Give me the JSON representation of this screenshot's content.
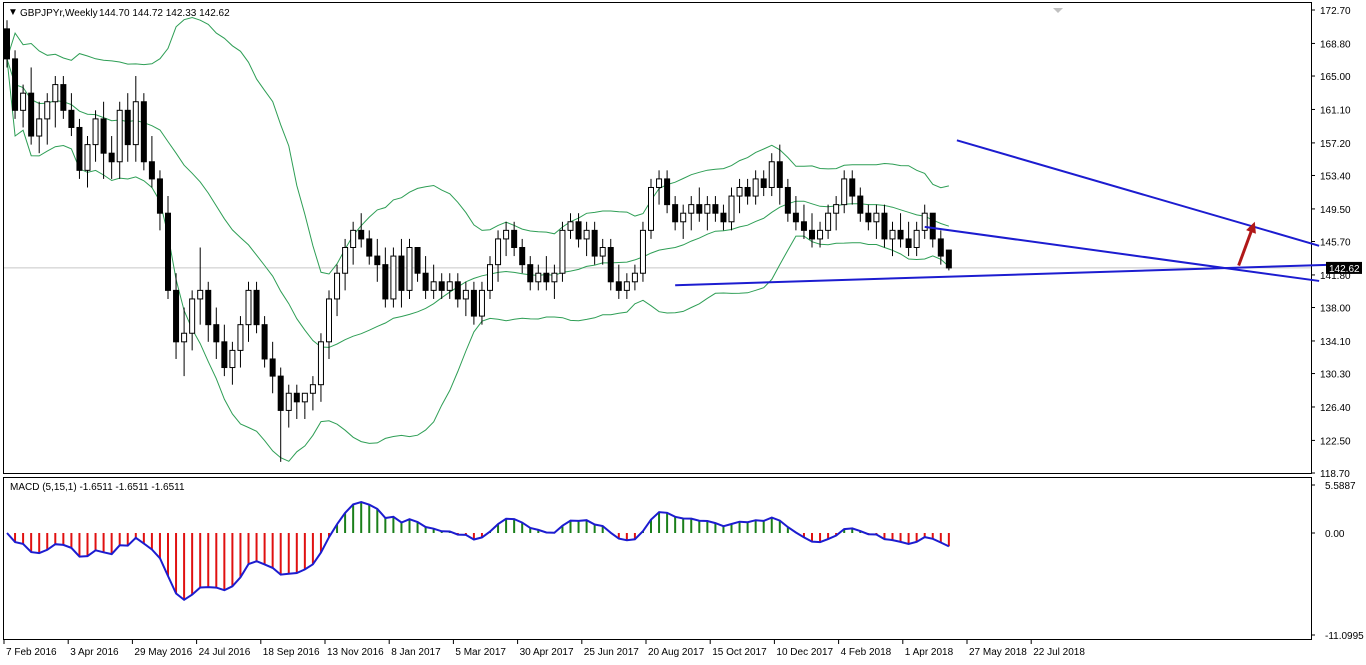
{
  "window": {
    "symbol_title": "GBPJPYr,Weekly",
    "ohlc_readout": "144.70 144.72 142.33 142.62",
    "collapse_marker": "▼"
  },
  "macd_panel": {
    "label": "MACD (5,15,1) -1.6511 -1.6511 -1.6511",
    "axis_ticks": [
      "5.5887",
      "0.00",
      "-11.0995"
    ],
    "colors": {
      "positive": "#1a7f1a",
      "negative": "#e01010",
      "signal": "#1c1cd0"
    }
  },
  "price_axis": {
    "ticks": [
      "172.70",
      "168.80",
      "165.00",
      "161.10",
      "157.20",
      "153.40",
      "149.50",
      "145.70",
      "141.80",
      "138.00",
      "134.10",
      "130.30",
      "126.40",
      "122.50",
      "118.70"
    ],
    "current_price_label": "142.62"
  },
  "time_axis": {
    "labels": [
      "7 Feb 2016",
      "3 Apr 2016",
      "29 May 2016",
      "24 Jul 2016",
      "18 Sep 2016",
      "13 Nov 2016",
      "8 Jan 2017",
      "5 Mar 2017",
      "30 Apr 2017",
      "25 Jun 2017",
      "20 Aug 2017",
      "15 Oct 2017",
      "10 Dec 2017",
      "4 Feb 2018",
      "1 Apr 2018",
      "27 May 2018",
      "22 Jul 2018"
    ]
  },
  "colors": {
    "bull_candle": "#ffffff",
    "bear_candle": "#000000",
    "bollinger": "#2e9e55",
    "trendline": "#1c1cd0",
    "arrow": "#b01818",
    "grid_line": "#c8c8c8"
  },
  "chart_data": {
    "type": "candlestick",
    "symbol": "GBPJPYr",
    "timeframe": "Weekly",
    "ylim": [
      118.7,
      172.7
    ],
    "last_close": 142.62,
    "candles": [
      [
        170.5,
        171.5,
        166,
        167
      ],
      [
        167,
        168,
        160,
        161
      ],
      [
        161,
        164,
        159,
        163
      ],
      [
        163,
        166,
        157,
        158
      ],
      [
        158,
        162,
        156,
        160
      ],
      [
        160,
        163,
        157,
        162
      ],
      [
        162,
        165,
        159,
        164
      ],
      [
        164,
        165,
        160,
        161
      ],
      [
        161,
        163,
        158,
        159
      ],
      [
        159,
        160,
        153,
        154
      ],
      [
        154,
        158,
        152,
        157
      ],
      [
        157,
        161,
        155,
        160
      ],
      [
        160,
        162,
        153,
        156
      ],
      [
        156,
        158,
        153,
        155
      ],
      [
        155,
        162,
        153,
        161
      ],
      [
        161,
        163,
        155,
        157
      ],
      [
        157,
        165,
        155,
        162
      ],
      [
        162,
        163,
        154,
        155
      ],
      [
        155,
        158,
        152,
        153
      ],
      [
        153,
        154,
        147,
        149
      ],
      [
        149,
        151,
        139,
        140
      ],
      [
        140,
        142,
        132,
        134
      ],
      [
        134,
        138,
        130,
        135
      ],
      [
        135,
        140,
        133,
        139
      ],
      [
        139,
        145,
        136,
        140
      ],
      [
        140,
        141,
        134,
        136
      ],
      [
        136,
        138,
        132,
        134
      ],
      [
        134,
        136,
        130,
        131
      ],
      [
        131,
        134,
        129,
        133
      ],
      [
        133,
        137,
        131,
        136
      ],
      [
        136,
        141,
        134,
        140
      ],
      [
        140,
        141,
        135,
        136
      ],
      [
        136,
        137,
        131,
        132
      ],
      [
        132,
        134,
        128,
        130
      ],
      [
        130,
        131,
        120,
        126
      ],
      [
        126,
        129,
        124,
        128
      ],
      [
        128,
        129,
        125,
        127
      ],
      [
        127,
        128,
        125,
        128
      ],
      [
        128,
        130,
        126,
        129
      ],
      [
        129,
        135,
        127,
        134
      ],
      [
        134,
        140,
        132,
        139
      ],
      [
        139,
        143,
        137,
        142
      ],
      [
        142,
        146,
        140,
        145
      ],
      [
        145,
        148,
        143,
        147
      ],
      [
        147,
        149,
        145,
        146
      ],
      [
        146,
        147,
        143,
        144
      ],
      [
        144,
        146,
        141,
        143
      ],
      [
        143,
        145,
        138,
        139
      ],
      [
        139,
        145,
        138,
        144
      ],
      [
        144,
        146,
        138,
        140
      ],
      [
        140,
        146,
        139,
        145
      ],
      [
        145,
        145,
        141,
        142
      ],
      [
        142,
        144,
        139,
        140
      ],
      [
        140,
        143,
        139,
        141
      ],
      [
        141,
        142,
        139,
        140
      ],
      [
        140,
        142,
        139,
        141
      ],
      [
        141,
        142,
        138,
        139
      ],
      [
        139,
        141,
        137,
        140
      ],
      [
        140,
        141,
        136,
        137
      ],
      [
        137,
        141,
        136,
        140
      ],
      [
        140,
        144,
        139,
        143
      ],
      [
        143,
        147,
        141,
        146
      ],
      [
        146,
        148,
        144,
        147
      ],
      [
        147,
        148,
        144,
        145
      ],
      [
        145,
        146,
        142,
        143
      ],
      [
        143,
        144,
        140,
        141
      ],
      [
        141,
        143,
        140,
        142
      ],
      [
        142,
        144,
        140,
        141
      ],
      [
        141,
        143,
        139,
        142
      ],
      [
        142,
        148,
        141,
        147
      ],
      [
        147,
        149,
        146,
        148
      ],
      [
        148,
        149,
        145,
        146
      ],
      [
        146,
        148,
        144,
        147
      ],
      [
        147,
        148,
        143,
        144
      ],
      [
        144,
        146,
        143,
        145
      ],
      [
        145,
        146,
        140,
        141
      ],
      [
        141,
        143,
        139,
        140
      ],
      [
        140,
        142,
        139,
        141
      ],
      [
        141,
        143,
        140,
        142
      ],
      [
        142,
        148,
        141,
        147
      ],
      [
        147,
        153,
        146,
        152
      ],
      [
        152,
        154,
        150,
        153
      ],
      [
        153,
        154,
        149,
        150
      ],
      [
        150,
        151,
        147,
        148
      ],
      [
        148,
        150,
        146,
        149
      ],
      [
        149,
        151,
        147,
        150
      ],
      [
        150,
        152,
        148,
        149
      ],
      [
        149,
        151,
        147,
        150
      ],
      [
        150,
        151,
        148,
        149
      ],
      [
        149,
        150,
        147,
        148
      ],
      [
        148,
        152,
        147,
        151
      ],
      [
        151,
        153,
        149,
        152
      ],
      [
        152,
        153,
        150,
        151
      ],
      [
        151,
        154,
        150,
        153
      ],
      [
        153,
        154,
        151,
        152
      ],
      [
        152,
        156,
        151,
        155
      ],
      [
        155,
        157,
        150,
        152
      ],
      [
        152,
        153,
        148,
        149
      ],
      [
        149,
        151,
        147,
        148
      ],
      [
        148,
        150,
        146,
        147
      ],
      [
        147,
        149,
        145,
        146
      ],
      [
        146,
        148,
        145,
        147
      ],
      [
        147,
        150,
        146,
        149
      ],
      [
        149,
        151,
        147,
        150
      ],
      [
        150,
        154,
        149,
        153
      ],
      [
        153,
        154,
        150,
        151
      ],
      [
        151,
        152,
        148,
        149
      ],
      [
        149,
        150,
        147,
        148
      ],
      [
        148,
        150,
        146,
        149
      ],
      [
        149,
        150,
        145,
        146
      ],
      [
        146,
        148,
        144,
        147
      ],
      [
        147,
        149,
        145,
        146
      ],
      [
        146,
        148,
        144,
        145
      ],
      [
        145,
        148,
        144,
        147
      ],
      [
        147,
        150,
        146,
        149
      ],
      [
        149,
        149,
        145,
        146
      ],
      [
        146,
        147,
        143,
        144
      ],
      [
        144.7,
        144.72,
        142.33,
        142.62
      ]
    ],
    "trendlines": [
      {
        "name": "upper-wedge",
        "from": [
          157.5,
          118
        ],
        "to": [
          145.2,
          163
        ]
      },
      {
        "name": "lower-wedge",
        "from": [
          147.4,
          114
        ],
        "to": [
          141.1,
          163
        ]
      },
      {
        "name": "support",
        "from": [
          140.6,
          83
        ],
        "to": [
          143,
          165
        ]
      }
    ],
    "arrow": {
      "from": [
        142.9,
        153
      ],
      "to": [
        148,
        155
      ]
    }
  }
}
